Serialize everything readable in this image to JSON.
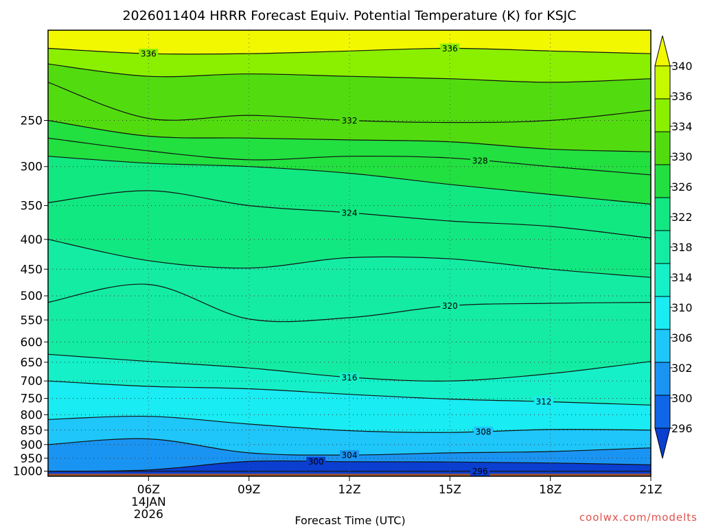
{
  "chart_data": {
    "type": "contour",
    "title": "2026011404 HRRR Forecast Equiv. Potential Temperature (K) for KSJC",
    "xlabel": "Forecast Time (UTC)",
    "ylabel": "",
    "credit": "coolwx.com/modelts",
    "x_range_hours": [
      3,
      21
    ],
    "x_ticks": [
      {
        "hour": 6,
        "label": "06Z"
      },
      {
        "hour": 9,
        "label": "09Z"
      },
      {
        "hour": 12,
        "label": "12Z"
      },
      {
        "hour": 15,
        "label": "15Z"
      },
      {
        "hour": 18,
        "label": "18Z"
      },
      {
        "hour": 21,
        "label": "21Z"
      }
    ],
    "date_label": [
      "14JAN",
      "2026"
    ],
    "y_axis": {
      "type": "log-pressure",
      "unit": "hPa",
      "range": [
        1020,
        175
      ]
    },
    "y_ticks": [
      250,
      300,
      350,
      400,
      450,
      500,
      550,
      600,
      650,
      700,
      750,
      800,
      850,
      900,
      950,
      1000
    ],
    "colorbar": {
      "levels": [
        296,
        300,
        302,
        306,
        310,
        314,
        318,
        322,
        326,
        330,
        334,
        336,
        340
      ],
      "labels": [
        "340",
        "336",
        "334",
        "330",
        "326",
        "322",
        "318",
        "314",
        "310",
        "306",
        "302",
        "300",
        "296"
      ],
      "colors": [
        "#0a3fd0",
        "#0f66e6",
        "#1a94f2",
        "#1ec6fa",
        "#19ecf2",
        "#15f0c8",
        "#14eca4",
        "#12e882",
        "#22e040",
        "#52dc10",
        "#8af000",
        "#c6f800",
        "#f2f800"
      ]
    },
    "contours": [
      {
        "level": 296,
        "pressure": [
          1000,
          1000,
          1000,
          1000,
          1000,
          1000,
          1000
        ],
        "label_at_hour": 15.9
      },
      {
        "level": 300,
        "pressure": [
          1000,
          995,
          962,
          963,
          964,
          968,
          975
        ],
        "label_at_hour": 11
      },
      {
        "level": 304,
        "pressure": [
          900,
          880,
          930,
          938,
          930,
          925,
          912
        ],
        "label_at_hour": 12
      },
      {
        "level": 308,
        "pressure": [
          815,
          805,
          830,
          852,
          858,
          848,
          850
        ],
        "label_at_hour": 16
      },
      {
        "level": 312,
        "pressure": [
          700,
          715,
          722,
          738,
          752,
          760,
          770
        ],
        "label_at_hour": 17.8
      },
      {
        "level": 316,
        "pressure": [
          630,
          648,
          665,
          690,
          700,
          680,
          648
        ],
        "label_at_hour": 12
      },
      {
        "level": 320,
        "pressure": [
          513,
          478,
          548,
          545,
          520,
          515,
          513
        ],
        "label_at_hour": 15
      },
      {
        "level": 322,
        "pressure": [
          400,
          435,
          448,
          430,
          432,
          450,
          465
        ],
        "label_at_hour": null
      },
      {
        "level": 324,
        "pressure": [
          346,
          330,
          350,
          360,
          372,
          380,
          398
        ],
        "label_at_hour": 12
      },
      {
        "level": 326,
        "pressure": [
          288,
          296,
          300,
          308,
          322,
          335,
          348
        ],
        "label_at_hour": null
      },
      {
        "level": 328,
        "pressure": [
          268,
          282,
          292,
          288,
          290,
          300,
          310
        ],
        "label_at_hour": 15.9
      },
      {
        "level": 330,
        "pressure": [
          250,
          266,
          268,
          270,
          272,
          280,
          283
        ],
        "label_at_hour": null
      },
      {
        "level": 332,
        "pressure": [
          215,
          248,
          245,
          250,
          252,
          250,
          240
        ],
        "label_at_hour": 12
      },
      {
        "level": 334,
        "pressure": [
          200,
          210,
          208,
          210,
          212,
          215,
          212
        ],
        "label_at_hour": null
      },
      {
        "level": 336,
        "pressure": [
          188,
          192,
          192,
          190,
          188,
          190,
          192
        ],
        "label_at_hour": 6,
        "label_at_hour_2": 15
      }
    ],
    "contour_label_text": {
      "296": "296",
      "300": "300",
      "304": "304",
      "308": "308",
      "312": "312",
      "316": "316",
      "320": "320",
      "324": "324",
      "328": "328",
      "332": "332",
      "336": "336"
    }
  }
}
